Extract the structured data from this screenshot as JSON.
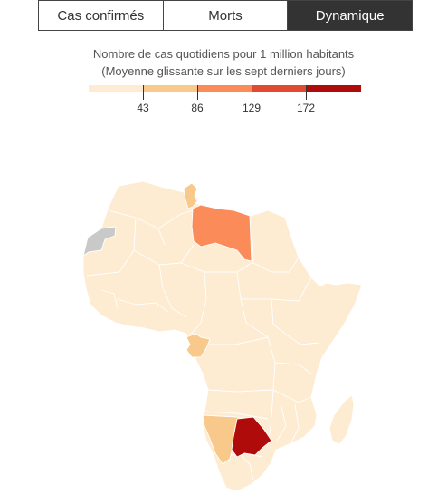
{
  "tabs": [
    {
      "label": "Cas confirmés",
      "active": false
    },
    {
      "label": "Morts",
      "active": false
    },
    {
      "label": "Dynamique",
      "active": true
    }
  ],
  "legend": {
    "title_line1": "Nombre de cas quotidiens pour 1 million habitants",
    "title_line2": "(Moyenne glissante sur les sept derniers jours)",
    "colors": [
      "#fdebd2",
      "#f8c98a",
      "#fb8c5a",
      "#e04a32",
      "#b00b0b"
    ],
    "ticks": [
      "43",
      "86",
      "129",
      "172"
    ]
  },
  "colors": {
    "base": "#fdebd2",
    "no_data": "#c9c9c9",
    "level2": "#f8c98a",
    "level3": "#fb8c5a",
    "level5": "#b00b0b"
  },
  "highlighted_countries": {
    "libya": "level3",
    "botswana": "level5",
    "namibia": "level2",
    "tunisia": "level2",
    "gabon": "level2",
    "western_sahara": "no_data"
  }
}
